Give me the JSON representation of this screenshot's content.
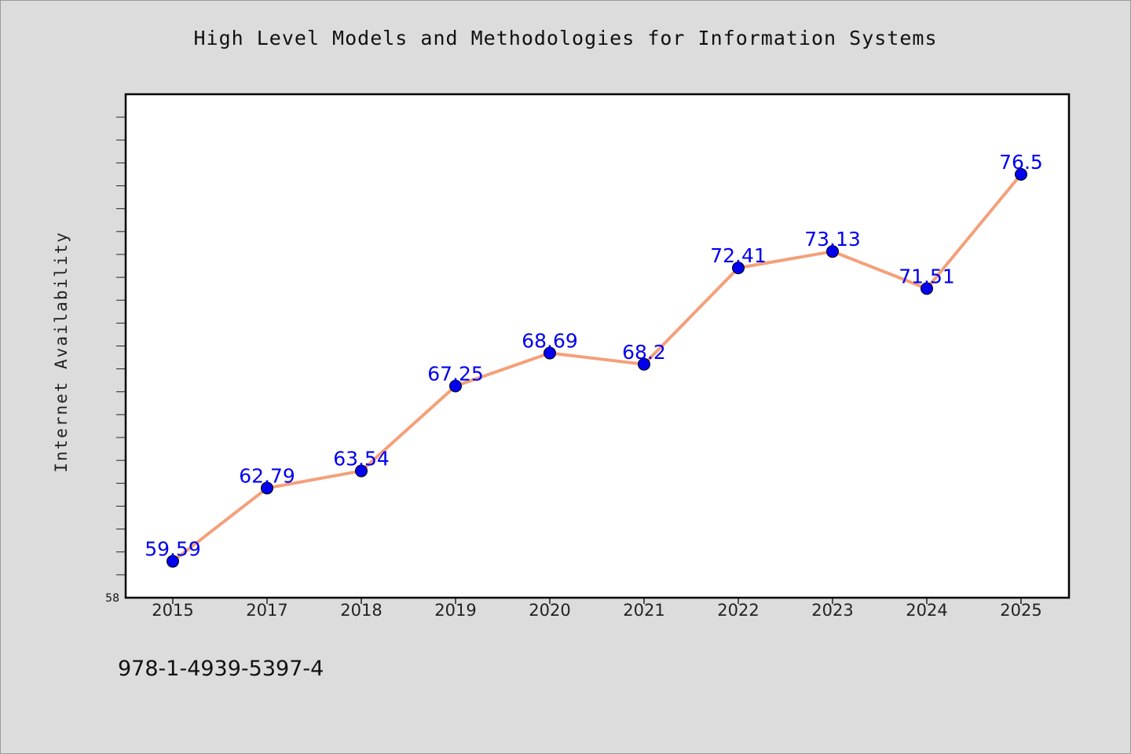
{
  "chart_data": {
    "type": "line",
    "title": "High Level Models and Methodologies for Information Systems",
    "xlabel": "",
    "ylabel": "Internet Availability",
    "x": [
      "2015",
      "2017",
      "2018",
      "2019",
      "2020",
      "2021",
      "2022",
      "2023",
      "2024",
      "2025"
    ],
    "series": [
      {
        "values": [
          59.59,
          62.79,
          63.54,
          67.25,
          68.69,
          68.2,
          72.41,
          73.13,
          71.51,
          76.5
        ],
        "data_labels": [
          "59.59",
          "62.79",
          "63.54",
          "67.25",
          "68.69",
          "68.2",
          "72.41",
          "73.13",
          "71.51",
          "76.5"
        ]
      }
    ],
    "ylim": [
      58,
      80
    ],
    "y_tick_labels": [
      "58"
    ],
    "grid": false,
    "line_color": "#f4a07a",
    "marker_color": "#0000ee",
    "label_color": "#0000ee"
  },
  "footer": {
    "code": "978-1-4939-5397-4"
  }
}
